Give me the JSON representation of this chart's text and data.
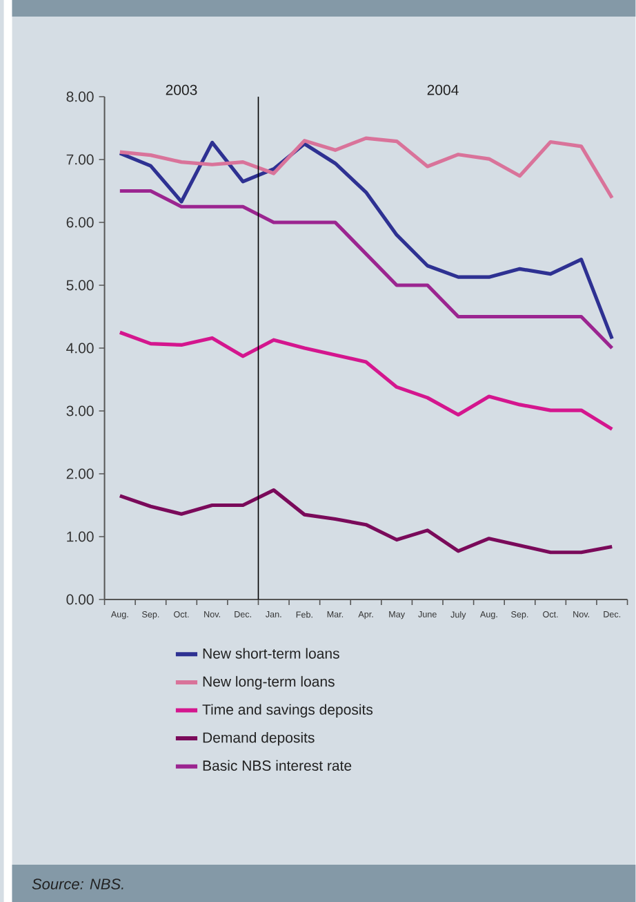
{
  "chart_data": {
    "type": "line",
    "categories": [
      "Aug.",
      "Sep.",
      "Oct.",
      "Nov.",
      "Dec.",
      "Jan.",
      "Feb.",
      "Mar.",
      "Apr.",
      "May",
      "June",
      "July",
      "Aug.",
      "Sep.",
      "Oct.",
      "Nov.",
      "Dec."
    ],
    "series": [
      {
        "name": "New short-term loans",
        "color": "#2e3192",
        "values": [
          7.1,
          6.9,
          6.33,
          7.27,
          6.65,
          6.85,
          7.25,
          6.94,
          6.48,
          5.8,
          5.31,
          5.13,
          5.13,
          5.26,
          5.18,
          5.41,
          4.15
        ]
      },
      {
        "name": "New long-term loans",
        "color": "#d9739a",
        "values": [
          7.12,
          7.07,
          6.96,
          6.92,
          6.96,
          6.78,
          7.3,
          7.15,
          7.34,
          7.29,
          6.89,
          7.08,
          7.01,
          6.74,
          7.28,
          7.21,
          6.39
        ]
      },
      {
        "name": "Time and savings deposits",
        "color": "#d4168e",
        "values": [
          4.25,
          4.07,
          4.05,
          4.16,
          3.87,
          4.13,
          4.0,
          3.89,
          3.78,
          3.38,
          3.21,
          2.94,
          3.23,
          3.1,
          3.01,
          3.01,
          2.71
        ]
      },
      {
        "name": "Demand deposits",
        "color": "#7a0a5a",
        "values": [
          1.65,
          1.48,
          1.36,
          1.5,
          1.5,
          1.74,
          1.35,
          1.28,
          1.19,
          0.95,
          1.1,
          0.77,
          0.97,
          0.86,
          0.75,
          0.75,
          0.84
        ]
      },
      {
        "name": "Basic NBS interest rate",
        "color": "#9b2590",
        "values": [
          6.5,
          6.5,
          6.25,
          6.25,
          6.25,
          6.0,
          6.0,
          6.0,
          5.5,
          5.0,
          5.0,
          4.5,
          4.5,
          4.5,
          4.5,
          4.5,
          4.0
        ]
      }
    ],
    "ylim": [
      0,
      8
    ],
    "yticks": [
      {
        "value": 0,
        "label": "0.00"
      },
      {
        "value": 1,
        "label": "1.00"
      },
      {
        "value": 2,
        "label": "2.00"
      },
      {
        "value": 3,
        "label": "3.00"
      },
      {
        "value": 4,
        "label": "4.00"
      },
      {
        "value": 5,
        "label": "5.00"
      },
      {
        "value": 6,
        "label": "6.00"
      },
      {
        "value": 7,
        "label": "7.00"
      },
      {
        "value": 8,
        "label": "8.00"
      }
    ],
    "annotations": [
      "2003",
      "2004",
      "Source: NBS."
    ],
    "legend": "bottom",
    "grid": false,
    "marker": "none"
  }
}
